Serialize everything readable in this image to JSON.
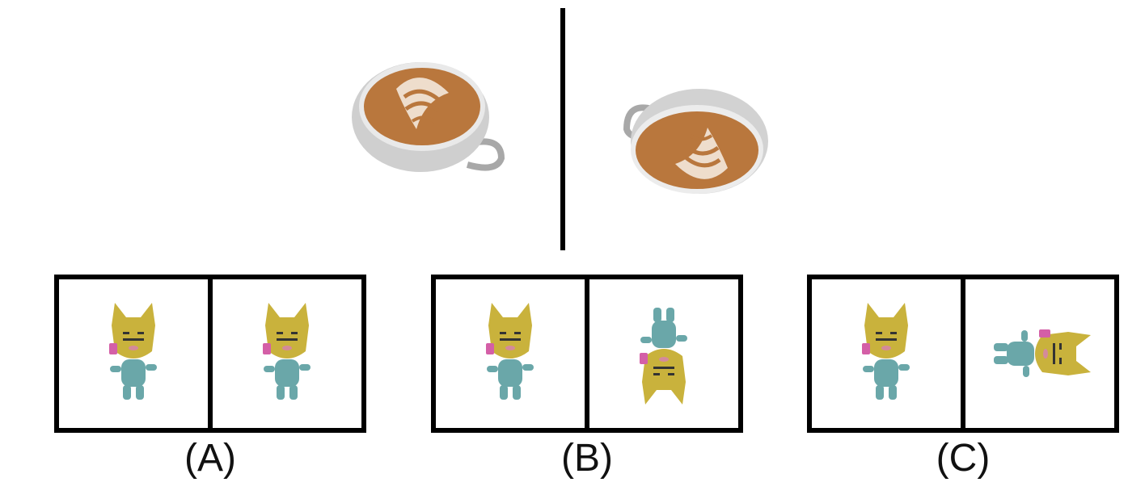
{
  "options": [
    {
      "label": "(A)"
    },
    {
      "label": "(B)"
    },
    {
      "label": "(C)"
    }
  ],
  "icons": {
    "cup": "latte-cup-icon",
    "figure": "cat-figurine-icon"
  },
  "colors": {
    "divider": "#000000",
    "frame": "#000000",
    "cat_head": "#c9b23c",
    "cat_body": "#6aa7a9",
    "cat_cheek": "#d45fa7",
    "coffee": "#b9773d",
    "cup": "#d9d9d9"
  }
}
